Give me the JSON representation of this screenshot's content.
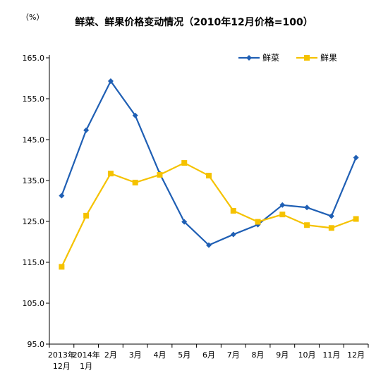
{
  "chart_data": {
    "type": "line",
    "title": "鲜菜、鲜果价格变动情况（2010年12月价格=100）",
    "ylabel": "（%）",
    "xlabel": "",
    "ylim": [
      95,
      170
    ],
    "yticks": [
      95,
      105,
      115,
      125,
      135,
      145,
      155,
      165
    ],
    "ytick_labels": [
      "95.0",
      "105.0",
      "115.0",
      "125.0",
      "135.0",
      "145.0",
      "155.0",
      "165.0"
    ],
    "categories": [
      [
        "2013年",
        "12月"
      ],
      [
        "2014年",
        "1月"
      ],
      [
        "2月"
      ],
      [
        "3月"
      ],
      [
        "4月"
      ],
      [
        "5月"
      ],
      [
        "6月"
      ],
      [
        "7月"
      ],
      [
        "8月"
      ],
      [
        "9月"
      ],
      [
        "10月"
      ],
      [
        "11月"
      ],
      [
        "12月"
      ]
    ],
    "grid": false,
    "legend_position": "top-right",
    "series": [
      {
        "name": "鲜菜",
        "color": "#1f5fb4",
        "marker": "diamond",
        "values": [
          131.3,
          147.3,
          159.3,
          150.9,
          136.7,
          124.9,
          119.2,
          121.8,
          124.2,
          129.0,
          128.4,
          126.3,
          140.6
        ]
      },
      {
        "name": "鲜果",
        "color": "#f5c200",
        "marker": "square",
        "values": [
          113.9,
          126.4,
          136.7,
          134.5,
          136.4,
          139.3,
          136.2,
          127.6,
          124.9,
          126.7,
          124.1,
          123.4,
          125.6
        ]
      }
    ]
  }
}
